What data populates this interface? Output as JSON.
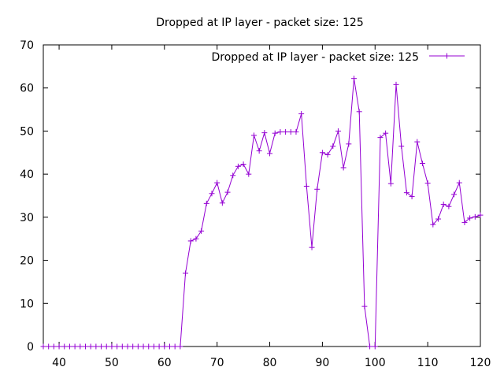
{
  "chart_data": {
    "type": "line",
    "title": "Dropped at IP layer - packet size: 125",
    "xlabel": "",
    "ylabel": "",
    "xlim": [
      37,
      120
    ],
    "ylim": [
      0,
      70
    ],
    "xticks": [
      40,
      50,
      60,
      70,
      80,
      90,
      100,
      110,
      120
    ],
    "yticks": [
      0,
      10,
      20,
      30,
      40,
      50,
      60,
      70
    ],
    "grid": false,
    "legend_position": "top-right",
    "series": [
      {
        "name": "Dropped at IP layer - packet size: 125",
        "color": "#9400d3",
        "marker": "plus",
        "x": [
          37,
          38,
          39,
          40,
          41,
          42,
          43,
          44,
          45,
          46,
          47,
          48,
          49,
          50,
          51,
          52,
          53,
          54,
          55,
          56,
          57,
          58,
          59,
          60,
          61,
          62,
          63,
          64,
          65,
          66,
          67,
          68,
          69,
          70,
          71,
          72,
          73,
          74,
          75,
          76,
          77,
          78,
          79,
          80,
          81,
          82,
          83,
          84,
          85,
          86,
          87,
          88,
          89,
          90,
          91,
          92,
          93,
          94,
          95,
          96,
          97,
          98,
          99,
          100,
          101,
          102,
          103,
          104,
          105,
          106,
          107,
          108,
          109,
          110,
          111,
          112,
          113,
          114,
          115,
          116,
          117,
          118,
          119,
          120
        ],
        "values": [
          0,
          0,
          0,
          0,
          0,
          0,
          0,
          0,
          0,
          0,
          0,
          0,
          0,
          0,
          0,
          0,
          0,
          0,
          0,
          0,
          0,
          0,
          0,
          0,
          0,
          0,
          0,
          17,
          24.5,
          25,
          26.8,
          33.2,
          35.5,
          38,
          33.3,
          35.8,
          39.7,
          41.8,
          42.3,
          40,
          49,
          45.4,
          49.6,
          44.8,
          49.5,
          49.8,
          49.8,
          49.8,
          49.8,
          54,
          37.2,
          23,
          36.5,
          45,
          44.5,
          46.5,
          50,
          41.5,
          47,
          62.2,
          54.5,
          9.3,
          0,
          0,
          48.5,
          49.5,
          37.8,
          60.8,
          46.5,
          35.7,
          34.8,
          47.5,
          42.5,
          37.9,
          28.3,
          29.6,
          33,
          32.5,
          35.3,
          38,
          28.8,
          29.8,
          30.1,
          30.5
        ]
      }
    ]
  }
}
